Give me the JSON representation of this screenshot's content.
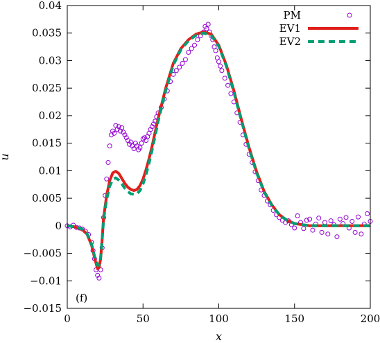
{
  "chart_data": {
    "type": "scatter",
    "xlabel": "x",
    "ylabel": "u",
    "panel_label": "(f)",
    "xlim": [
      0,
      200
    ],
    "ylim": [
      -0.015,
      0.04
    ],
    "x_ticks": [
      0,
      50,
      100,
      150,
      200
    ],
    "y_ticks": [
      -0.015,
      -0.01,
      -0.005,
      0,
      0.005,
      0.01,
      0.015,
      0.02,
      0.025,
      0.03,
      0.035,
      0.04
    ],
    "x_tick_labels": [
      "0",
      "50",
      "100",
      "150",
      "200"
    ],
    "y_tick_labels": [
      "−0.015",
      "−0.01",
      "−0.005",
      "0",
      "0.005",
      "0.01",
      "0.015",
      "0.02",
      "0.025",
      "0.03",
      "0.035",
      "0.04"
    ],
    "grid": false,
    "legend_position": "top-right",
    "series": [
      {
        "name": "PM",
        "style": "circles",
        "color": "#9400d3",
        "points": [
          [
            0,
            0
          ],
          [
            2,
            -0.0002
          ],
          [
            4,
            0.0001
          ],
          [
            6,
            -0.0003
          ],
          [
            8,
            -0.0004
          ],
          [
            10,
            -0.0006
          ],
          [
            12,
            -0.001
          ],
          [
            14,
            -0.0016
          ],
          [
            16,
            -0.003
          ],
          [
            17,
            -0.0045
          ],
          [
            18,
            -0.006
          ],
          [
            19,
            -0.008
          ],
          [
            20,
            -0.009
          ],
          [
            21,
            -0.0095
          ],
          [
            22,
            -0.008
          ],
          [
            23,
            -0.004
          ],
          [
            24,
            0.0015
          ],
          [
            25,
            0.0055
          ],
          [
            26,
            0.0085
          ],
          [
            27,
            0.0115
          ],
          [
            28,
            0.0145
          ],
          [
            29,
            0.0165
          ],
          [
            30,
            0.0172
          ],
          [
            31,
            0.0168
          ],
          [
            32,
            0.0182
          ],
          [
            33,
            0.0175
          ],
          [
            34,
            0.018
          ],
          [
            35,
            0.0172
          ],
          [
            36,
            0.0178
          ],
          [
            37,
            0.017
          ],
          [
            38,
            0.0165
          ],
          [
            39,
            0.016
          ],
          [
            40,
            0.0155
          ],
          [
            41,
            0.0148
          ],
          [
            42,
            0.0152
          ],
          [
            43,
            0.0145
          ],
          [
            44,
            0.014
          ],
          [
            45,
            0.015
          ],
          [
            46,
            0.0145
          ],
          [
            47,
            0.0138
          ],
          [
            48,
            0.0142
          ],
          [
            49,
            0.015
          ],
          [
            50,
            0.0158
          ],
          [
            51,
            0.016
          ],
          [
            52,
            0.0155
          ],
          [
            53,
            0.0162
          ],
          [
            54,
            0.0168
          ],
          [
            55,
            0.0175
          ],
          [
            56,
            0.018
          ],
          [
            57,
            0.0185
          ],
          [
            58,
            0.019
          ],
          [
            59,
            0.0198
          ],
          [
            60,
            0.0205
          ],
          [
            62,
            0.0215
          ],
          [
            64,
            0.023
          ],
          [
            66,
            0.0245
          ],
          [
            68,
            0.0262
          ],
          [
            70,
            0.0275
          ],
          [
            72,
            0.0282
          ],
          [
            74,
            0.0288
          ],
          [
            76,
            0.0295
          ],
          [
            78,
            0.0302
          ],
          [
            80,
            0.0315
          ],
          [
            82,
            0.0322
          ],
          [
            84,
            0.0328
          ],
          [
            86,
            0.0338
          ],
          [
            88,
            0.0345
          ],
          [
            90,
            0.0352
          ],
          [
            91,
            0.0362
          ],
          [
            92,
            0.0358
          ],
          [
            93,
            0.0366
          ],
          [
            94,
            0.0352
          ],
          [
            95,
            0.0345
          ],
          [
            96,
            0.0338
          ],
          [
            97,
            0.0325
          ],
          [
            98,
            0.0318
          ],
          [
            99,
            0.0305
          ],
          [
            100,
            0.0298
          ],
          [
            101,
            0.029
          ],
          [
            102,
            0.0282
          ],
          [
            104,
            0.0268
          ],
          [
            106,
            0.0255
          ],
          [
            108,
            0.024
          ],
          [
            110,
            0.0225
          ],
          [
            112,
            0.0205
          ],
          [
            114,
            0.0188
          ],
          [
            116,
            0.0165
          ],
          [
            118,
            0.0148
          ],
          [
            120,
            0.013
          ],
          [
            122,
            0.0115
          ],
          [
            124,
            0.0098
          ],
          [
            126,
            0.0082
          ],
          [
            128,
            0.0065
          ],
          [
            130,
            0.0055
          ],
          [
            132,
            0.0045
          ],
          [
            134,
            0.0038
          ],
          [
            136,
            0.0028
          ],
          [
            138,
            0.002
          ],
          [
            140,
            0.0015
          ],
          [
            142,
            0.001
          ],
          [
            144,
            0.0006
          ],
          [
            146,
            0.0009
          ],
          [
            148,
            0.0002
          ],
          [
            150,
            -0.0004
          ],
          [
            152,
            0.0018
          ],
          [
            154,
            0.0006
          ],
          [
            156,
            -0.0005
          ],
          [
            158,
            0.001
          ],
          [
            160,
            0.0012
          ],
          [
            162,
            -0.0008
          ],
          [
            164,
            0.0003
          ],
          [
            166,
            0.0014
          ],
          [
            168,
            -0.0012
          ],
          [
            170,
            0.0006
          ],
          [
            172,
            -0.0015
          ],
          [
            174,
            0.0009
          ],
          [
            176,
            0.0002
          ],
          [
            178,
            -0.002
          ],
          [
            180,
            0.0012
          ],
          [
            182,
            0.0004
          ],
          [
            184,
            0.0015
          ],
          [
            186,
            -0.0004
          ],
          [
            188,
            0.0008
          ],
          [
            190,
            -0.0012
          ],
          [
            192,
            0.0016
          ],
          [
            194,
            -0.0015
          ],
          [
            196,
            0.0003
          ],
          [
            198,
            0.0022
          ],
          [
            200,
            0.0008
          ]
        ]
      },
      {
        "name": "EV1",
        "style": "solid-line",
        "color": "#e0201b",
        "points": [
          [
            0,
            0
          ],
          [
            5,
            -0.0002
          ],
          [
            10,
            -0.0007
          ],
          [
            13,
            -0.0015
          ],
          [
            16,
            -0.0035
          ],
          [
            18,
            -0.0058
          ],
          [
            20,
            -0.0078
          ],
          [
            21,
            -0.0076
          ],
          [
            22,
            -0.006
          ],
          [
            23,
            -0.0025
          ],
          [
            24,
            0.0015
          ],
          [
            26,
            0.0055
          ],
          [
            28,
            0.0082
          ],
          [
            30,
            0.0096
          ],
          [
            32,
            0.0099
          ],
          [
            34,
            0.0095
          ],
          [
            36,
            0.0086
          ],
          [
            38,
            0.0077
          ],
          [
            40,
            0.007
          ],
          [
            42,
            0.0066
          ],
          [
            44,
            0.0064
          ],
          [
            46,
            0.0066
          ],
          [
            48,
            0.0073
          ],
          [
            50,
            0.0085
          ],
          [
            52,
            0.0102
          ],
          [
            54,
            0.0122
          ],
          [
            56,
            0.0145
          ],
          [
            58,
            0.017
          ],
          [
            60,
            0.0195
          ],
          [
            65,
            0.025
          ],
          [
            70,
            0.0295
          ],
          [
            75,
            0.0322
          ],
          [
            80,
            0.0338
          ],
          [
            85,
            0.0348
          ],
          [
            90,
            0.0352
          ],
          [
            95,
            0.0348
          ],
          [
            100,
            0.0328
          ],
          [
            105,
            0.0292
          ],
          [
            110,
            0.0245
          ],
          [
            115,
            0.0192
          ],
          [
            120,
            0.0142
          ],
          [
            125,
            0.0098
          ],
          [
            130,
            0.0062
          ],
          [
            135,
            0.0038
          ],
          [
            140,
            0.002
          ],
          [
            145,
            0.001
          ],
          [
            150,
            0.0004
          ],
          [
            155,
            0.0002
          ],
          [
            160,
            0
          ],
          [
            170,
            0
          ],
          [
            180,
            0
          ],
          [
            190,
            0
          ],
          [
            200,
            0
          ]
        ]
      },
      {
        "name": "EV2",
        "style": "dashed-line",
        "color": "#009e73",
        "points": [
          [
            0,
            0
          ],
          [
            5,
            -0.0002
          ],
          [
            10,
            -0.0006
          ],
          [
            13,
            -0.0014
          ],
          [
            16,
            -0.0033
          ],
          [
            18,
            -0.0055
          ],
          [
            20,
            -0.0072
          ],
          [
            21,
            -0.0071
          ],
          [
            22,
            -0.0058
          ],
          [
            23,
            -0.0025
          ],
          [
            24,
            0.0012
          ],
          [
            26,
            0.0048
          ],
          [
            28,
            0.0072
          ],
          [
            30,
            0.0084
          ],
          [
            32,
            0.0087
          ],
          [
            34,
            0.0083
          ],
          [
            36,
            0.0076
          ],
          [
            38,
            0.0068
          ],
          [
            40,
            0.0062
          ],
          [
            42,
            0.0058
          ],
          [
            44,
            0.0057
          ],
          [
            46,
            0.0058
          ],
          [
            48,
            0.0064
          ],
          [
            50,
            0.0076
          ],
          [
            52,
            0.0093
          ],
          [
            54,
            0.0114
          ],
          [
            56,
            0.0138
          ],
          [
            58,
            0.0163
          ],
          [
            60,
            0.019
          ],
          [
            65,
            0.0246
          ],
          [
            70,
            0.0292
          ],
          [
            75,
            0.032
          ],
          [
            80,
            0.0336
          ],
          [
            85,
            0.0346
          ],
          [
            90,
            0.035
          ],
          [
            95,
            0.0346
          ],
          [
            100,
            0.0326
          ],
          [
            105,
            0.029
          ],
          [
            110,
            0.0242
          ],
          [
            115,
            0.019
          ],
          [
            120,
            0.014
          ],
          [
            125,
            0.0096
          ],
          [
            130,
            0.0061
          ],
          [
            135,
            0.0037
          ],
          [
            140,
            0.002
          ],
          [
            145,
            0.001
          ],
          [
            150,
            0.0004
          ],
          [
            155,
            0.0002
          ],
          [
            160,
            0
          ],
          [
            170,
            0
          ],
          [
            180,
            0
          ],
          [
            190,
            0
          ],
          [
            200,
            0
          ]
        ]
      }
    ]
  }
}
